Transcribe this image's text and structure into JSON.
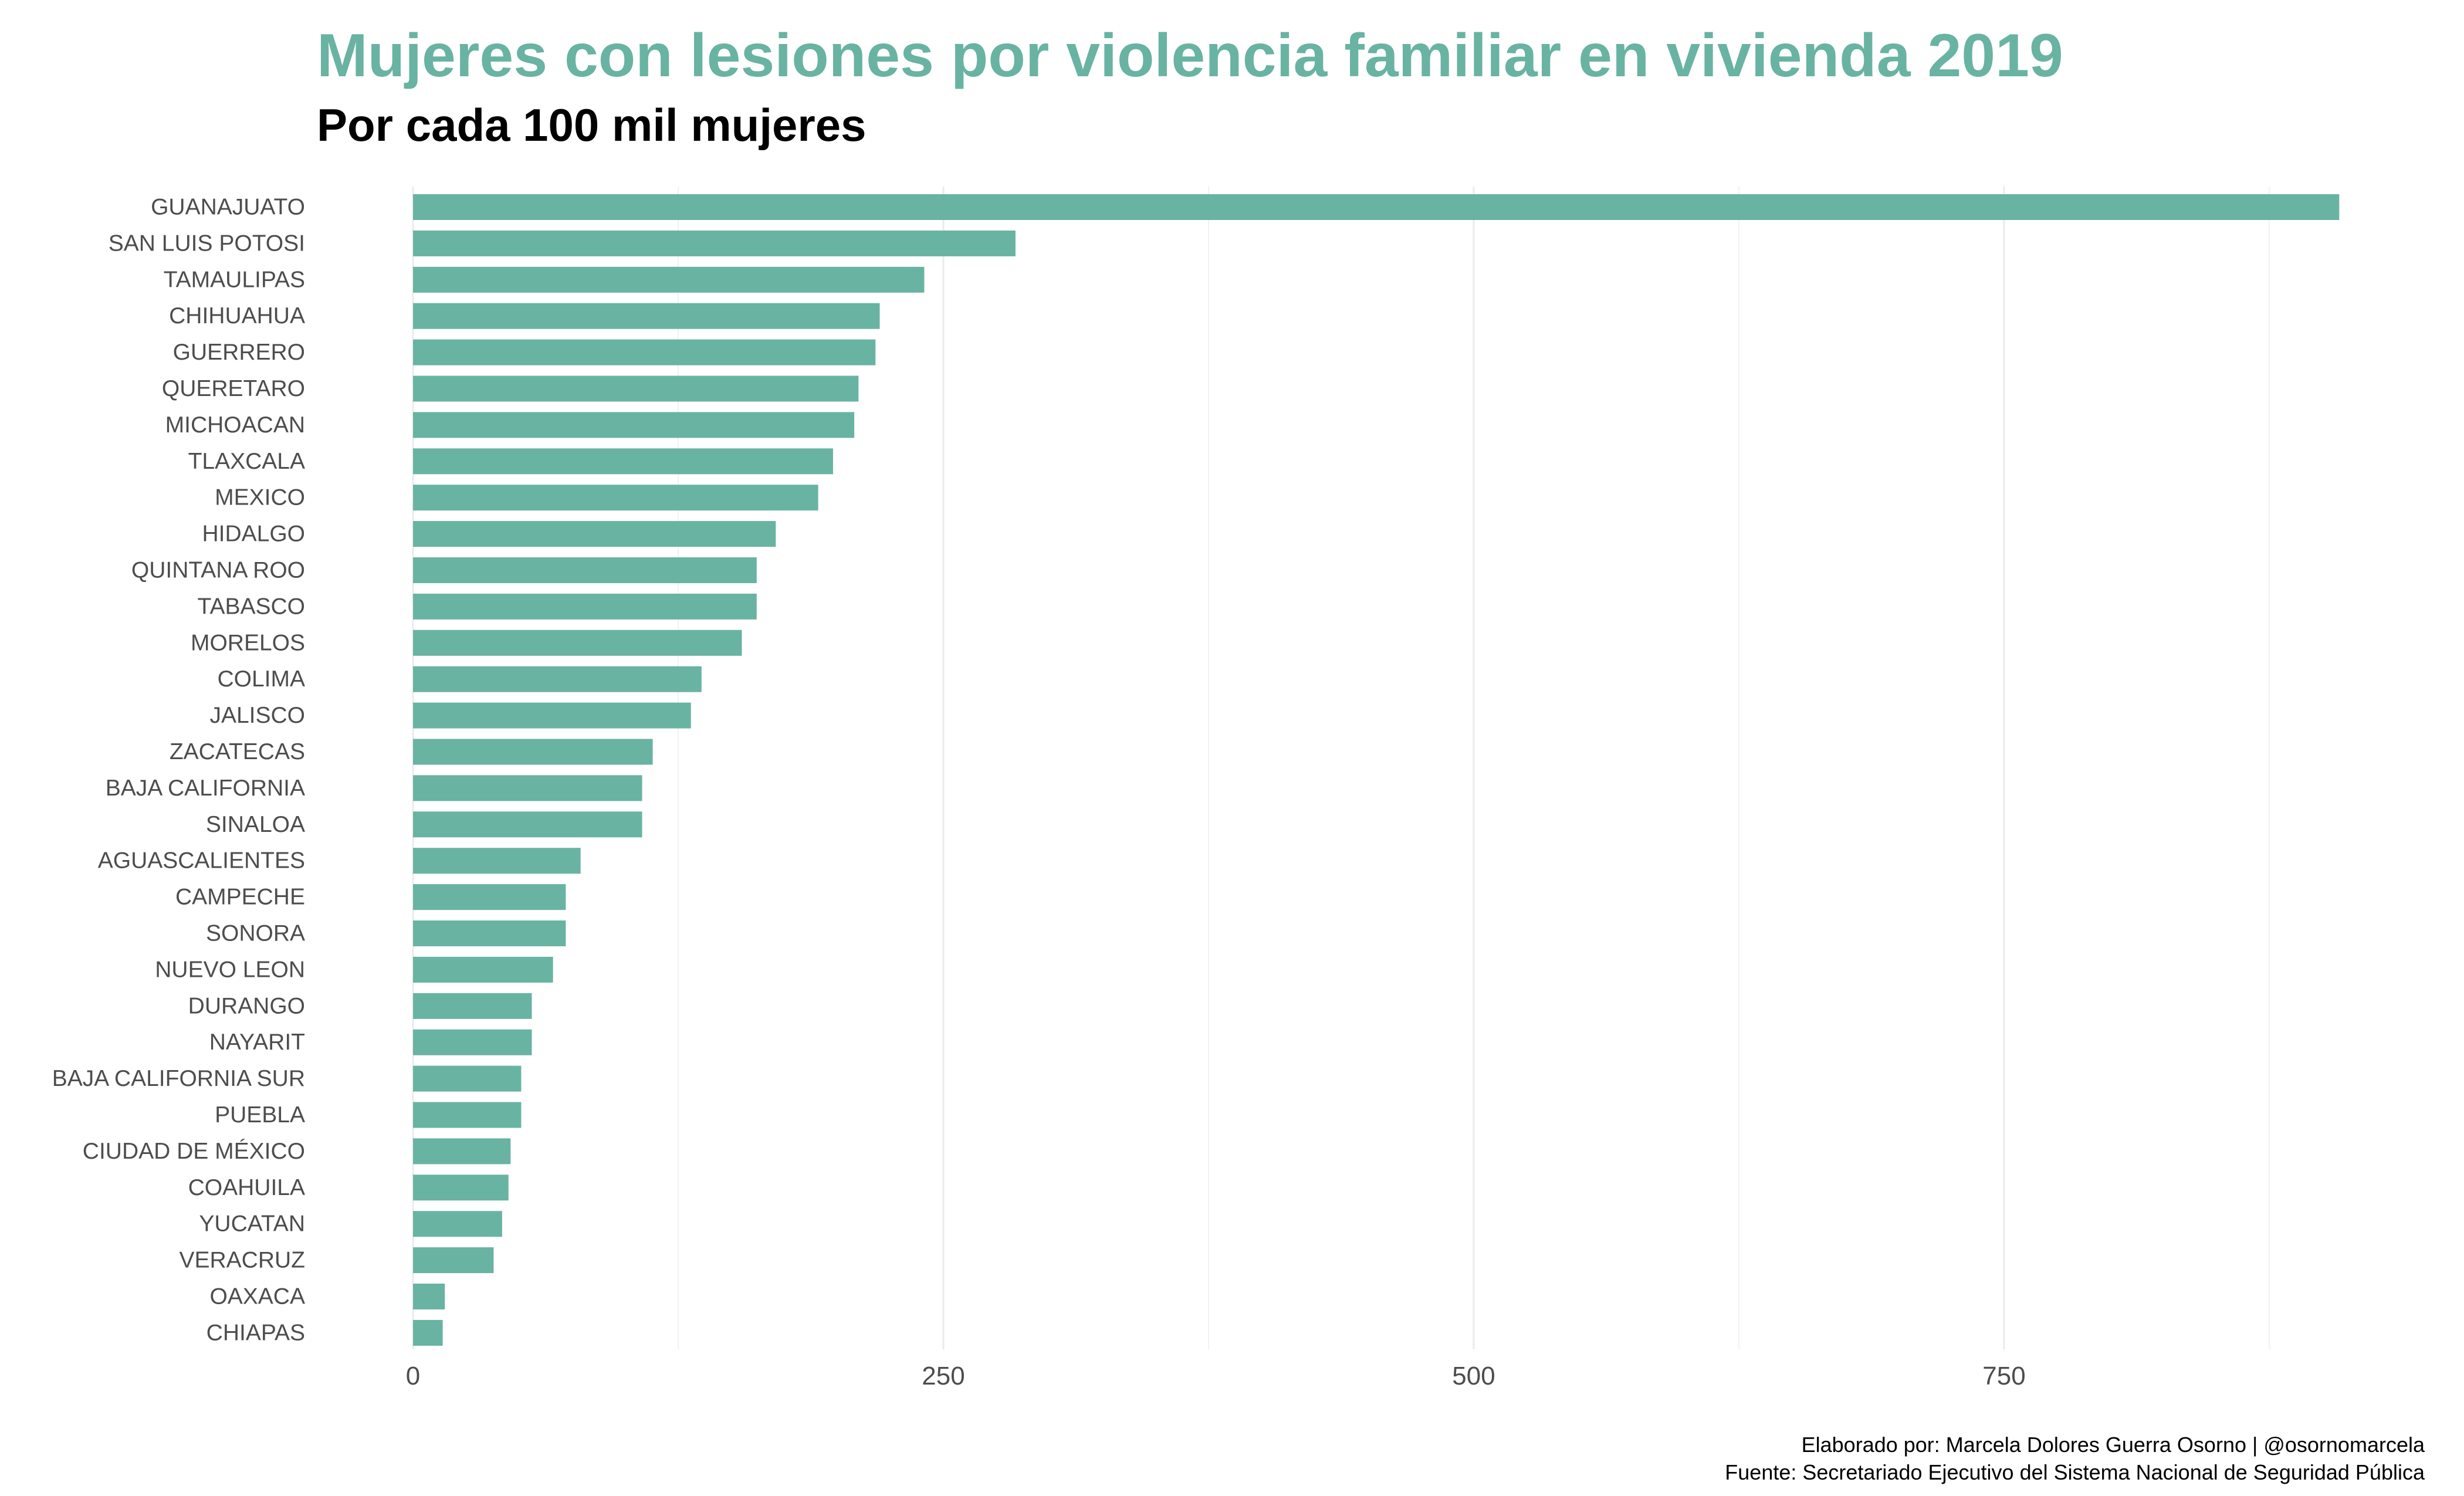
{
  "chart_data": {
    "type": "bar",
    "orientation": "horizontal",
    "title": "Mujeres con lesiones por violencia familiar en vivienda 2019",
    "subtitle": "Por cada 100 mil mujeres",
    "xlabel": "",
    "ylabel": "",
    "xlim": [
      0,
      940
    ],
    "xticks": [
      0,
      250,
      500,
      750
    ],
    "grid": "vertical",
    "bar_color": "#69b3a2",
    "title_color": "#69b3a2",
    "categories": [
      "GUANAJUATO",
      "SAN LUIS POTOSI",
      "TAMAULIPAS",
      "CHIHUAHUA",
      "GUERRERO",
      "QUERETARO",
      "MICHOACAN",
      "TLAXCALA",
      "MEXICO",
      "HIDALGO",
      "QUINTANA ROO",
      "TABASCO",
      "MORELOS",
      "COLIMA",
      "JALISCO",
      "ZACATECAS",
      "BAJA CALIFORNIA",
      "SINALOA",
      "AGUASCALIENTES",
      "CAMPECHE",
      "SONORA",
      "NUEVO LEON",
      "DURANGO",
      "NAYARIT",
      "BAJA CALIFORNIA SUR",
      "PUEBLA",
      "CIUDAD DE MÉXICO",
      "COAHUILA",
      "YUCATAN",
      "VERACRUZ",
      "OAXACA",
      "CHIAPAS"
    ],
    "values": [
      908,
      284,
      241,
      220,
      218,
      210,
      208,
      198,
      191,
      171,
      162,
      162,
      155,
      136,
      131,
      113,
      108,
      108,
      79,
      72,
      72,
      66,
      56,
      56,
      51,
      51,
      46,
      45,
      42,
      38,
      15,
      14
    ],
    "caption_lines": [
      "Elaborado por: Marcela Dolores Guerra Osorno | @osornomarcela",
      "Fuente: Secretariado Ejecutivo del Sistema Nacional de Seguridad Pública"
    ]
  }
}
